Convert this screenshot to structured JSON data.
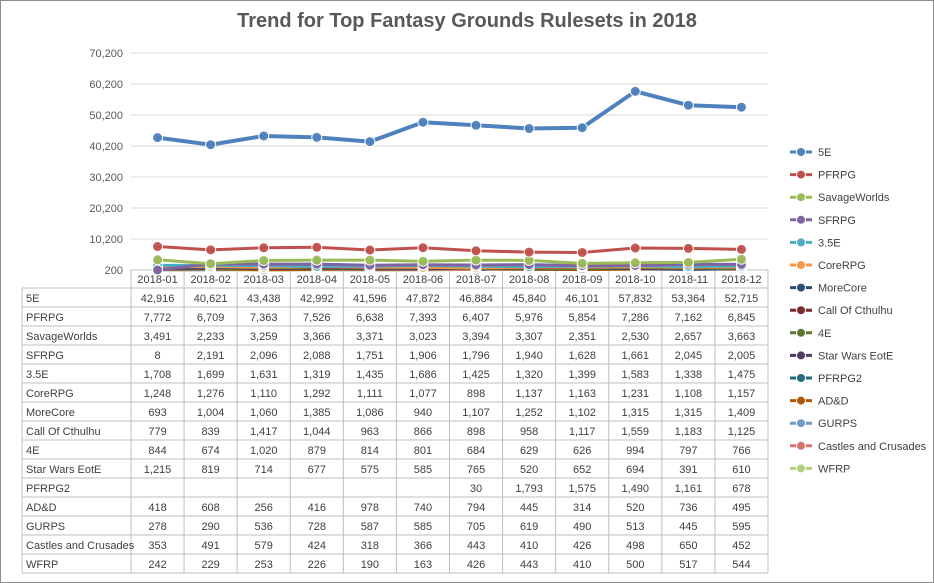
{
  "chart_data": {
    "type": "line",
    "title": "Trend for Top Fantasy Grounds Rulesets in 2018",
    "xlabel": "",
    "ylabel": "",
    "ylim": [
      200,
      70200
    ],
    "yticks": [
      "70,200",
      "60,200",
      "50,200",
      "40,200",
      "30,200",
      "20,200",
      "10,200",
      "200"
    ],
    "categories": [
      "2018-01",
      "2018-02",
      "2018-03",
      "2018-04",
      "2018-05",
      "2018-06",
      "2018-07",
      "2018-08",
      "2018-09",
      "2018-10",
      "2018-11",
      "2018-12"
    ],
    "legend_position": "right",
    "series": [
      {
        "name": "5E",
        "color": "#4f81bd",
        "values": [
          42916,
          40621,
          43438,
          42992,
          41596,
          47872,
          46884,
          45840,
          46101,
          57832,
          53364,
          52715
        ]
      },
      {
        "name": "PFRPG",
        "color": "#c0504d",
        "values": [
          7772,
          6709,
          7363,
          7526,
          6638,
          7393,
          6407,
          5976,
          5854,
          7286,
          7162,
          6845
        ]
      },
      {
        "name": "SavageWorlds",
        "color": "#9bbb59",
        "values": [
          3491,
          2233,
          3259,
          3366,
          3371,
          3023,
          3394,
          3307,
          2351,
          2530,
          2657,
          3663
        ]
      },
      {
        "name": "SFRPG",
        "color": "#8064a2",
        "values": [
          8,
          2191,
          2096,
          2088,
          1751,
          1906,
          1796,
          1940,
          1628,
          1661,
          2045,
          2005
        ]
      },
      {
        "name": "3.5E",
        "color": "#4bacc6",
        "values": [
          1708,
          1699,
          1631,
          1319,
          1435,
          1686,
          1425,
          1320,
          1399,
          1583,
          1338,
          1475
        ]
      },
      {
        "name": "CoreRPG",
        "color": "#f79646",
        "values": [
          1248,
          1276,
          1110,
          1292,
          1111,
          1077,
          898,
          1137,
          1163,
          1231,
          1108,
          1157
        ]
      },
      {
        "name": "MoreCore",
        "color": "#2c4d75",
        "values": [
          693,
          1004,
          1060,
          1385,
          1086,
          940,
          1107,
          1252,
          1102,
          1315,
          1315,
          1409
        ]
      },
      {
        "name": "Call Of Cthulhu",
        "color": "#772c2a",
        "values": [
          779,
          839,
          1417,
          1044,
          963,
          866,
          898,
          958,
          1117,
          1559,
          1183,
          1125
        ]
      },
      {
        "name": "4E",
        "color": "#5f7530",
        "values": [
          844,
          674,
          1020,
          879,
          814,
          801,
          684,
          629,
          626,
          994,
          797,
          766
        ]
      },
      {
        "name": "Star Wars EotE",
        "color": "#4d3b62",
        "values": [
          1215,
          819,
          714,
          677,
          575,
          585,
          765,
          520,
          652,
          694,
          391,
          610
        ]
      },
      {
        "name": "PFRPG2",
        "color": "#276a7c",
        "values": [
          null,
          null,
          null,
          null,
          null,
          null,
          30,
          1793,
          1575,
          1490,
          1161,
          678
        ]
      },
      {
        "name": "AD&D",
        "color": "#b65708",
        "values": [
          418,
          608,
          256,
          416,
          978,
          740,
          794,
          445,
          314,
          520,
          736,
          495
        ]
      },
      {
        "name": "GURPS",
        "color": "#729aca",
        "values": [
          278,
          290,
          536,
          728,
          587,
          585,
          705,
          619,
          490,
          513,
          445,
          595
        ]
      },
      {
        "name": "Castles and Crusades",
        "color": "#d9726e",
        "values": [
          353,
          491,
          579,
          424,
          318,
          366,
          443,
          410,
          426,
          498,
          650,
          452
        ]
      },
      {
        "name": "WFRP",
        "color": "#b3cf80",
        "values": [
          242,
          229,
          253,
          226,
          190,
          163,
          426,
          443,
          410,
          500,
          517,
          544
        ]
      }
    ]
  }
}
